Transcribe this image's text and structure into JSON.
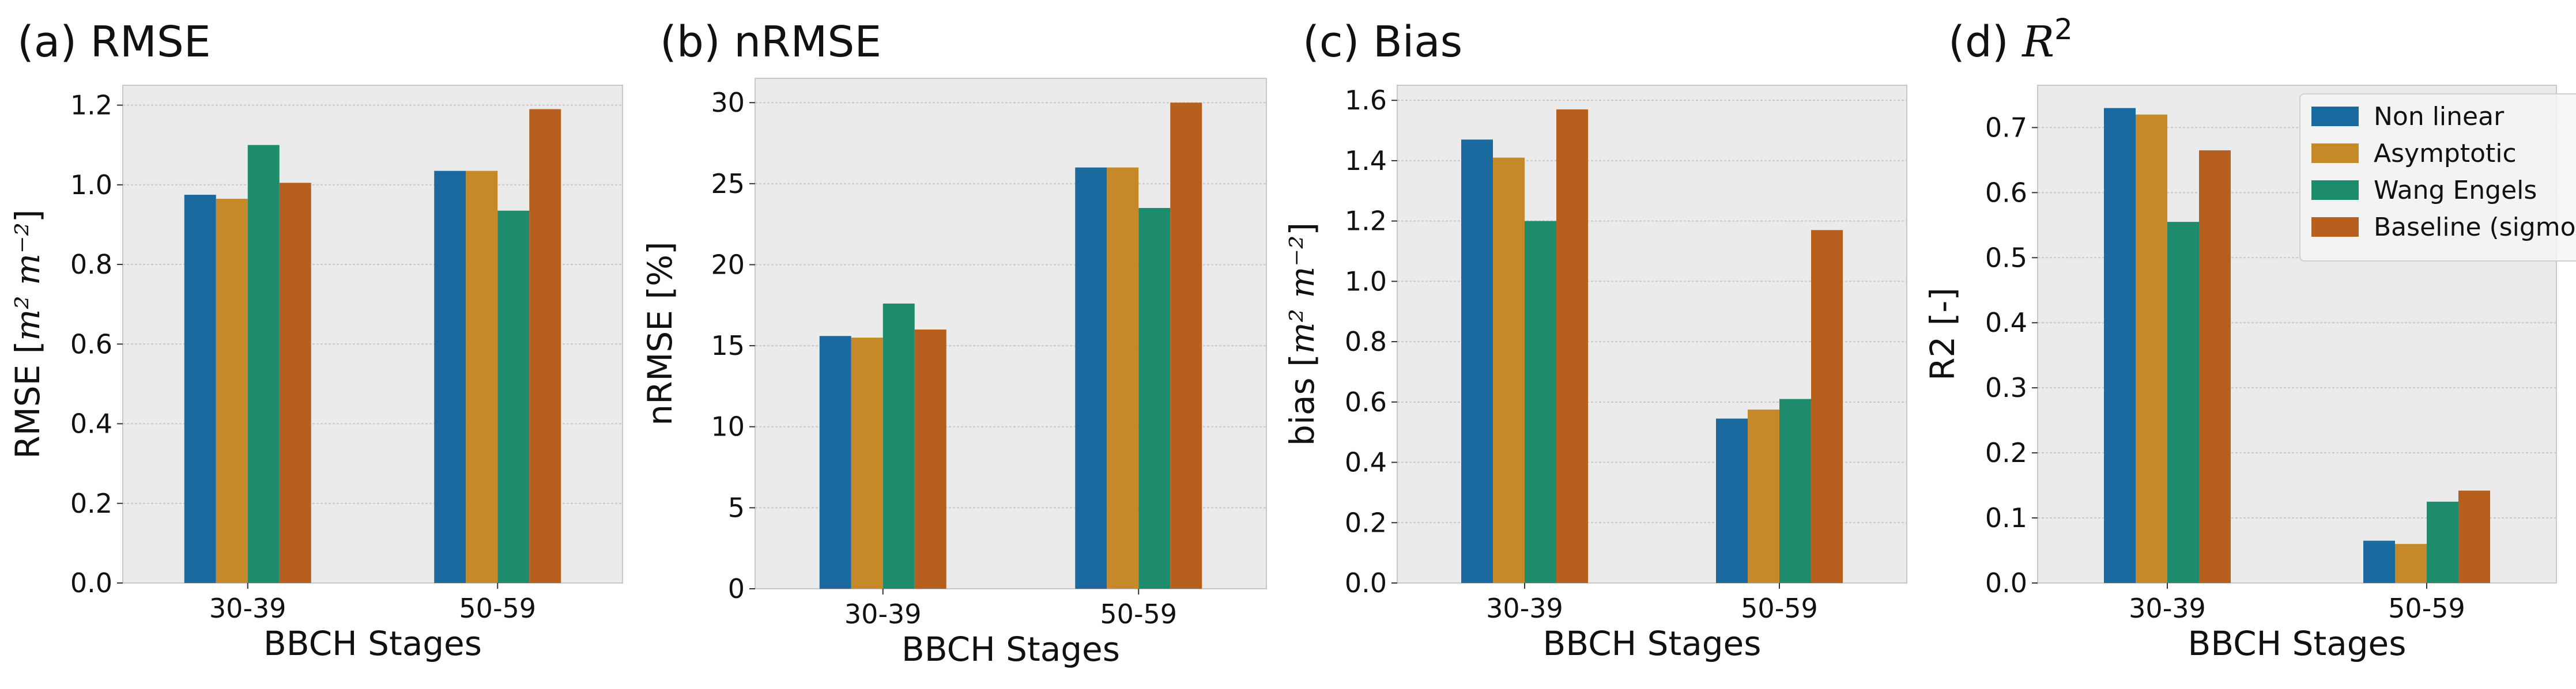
{
  "colors": {
    "Non linear": "#1a6aa0",
    "Asymptotic": "#c6892a",
    "Wang Engels": "#1e8c6c",
    "Baseline (sigmoid)": "#b75f1f",
    "plot_bg": "#ebebeb",
    "grid": "#c8c8c8"
  },
  "legend": {
    "entries": [
      "Non linear",
      "Asymptotic",
      "Wang Engels",
      "Baseline (sigmoid)"
    ],
    "placement": "upper-right (panel d)"
  },
  "chart_data": [
    {
      "type": "bar",
      "title": "(a) RMSE",
      "xlabel": "BBCH Stages",
      "ylabel": "RMSE [m² m⁻²]",
      "ylabel_text": "RMSE [",
      "ylabel_math": "m² m⁻²",
      "ylabel_close": "]",
      "categories": [
        "30-39",
        "50-59"
      ],
      "ylim": [
        0,
        1.25
      ],
      "yticks": [
        0.0,
        0.2,
        0.4,
        0.6,
        0.8,
        1.0,
        1.2
      ],
      "ytick_labels": [
        "0.0",
        "0.2",
        "0.4",
        "0.6",
        "0.8",
        "1.0",
        "1.2"
      ],
      "grid": true,
      "series": [
        {
          "name": "Non linear",
          "values": [
            0.975,
            1.035
          ]
        },
        {
          "name": "Asymptotic",
          "values": [
            0.965,
            1.035
          ]
        },
        {
          "name": "Wang Engels",
          "values": [
            1.1,
            0.935
          ]
        },
        {
          "name": "Baseline (sigmoid)",
          "values": [
            1.005,
            1.19
          ]
        }
      ]
    },
    {
      "type": "bar",
      "title": "(b) nRMSE",
      "xlabel": "BBCH Stages",
      "ylabel": "nRMSE [%]",
      "ylabel_text": "nRMSE [%]",
      "ylabel_math": "",
      "ylabel_close": "",
      "categories": [
        "30-39",
        "50-59"
      ],
      "ylim": [
        0,
        31.5
      ],
      "yticks": [
        0,
        5,
        10,
        15,
        20,
        25,
        30
      ],
      "ytick_labels": [
        "0",
        "5",
        "10",
        "15",
        "20",
        "25",
        "30"
      ],
      "grid": true,
      "series": [
        {
          "name": "Non linear",
          "values": [
            15.6,
            26.0
          ]
        },
        {
          "name": "Asymptotic",
          "values": [
            15.5,
            26.0
          ]
        },
        {
          "name": "Wang Engels",
          "values": [
            17.6,
            23.5
          ]
        },
        {
          "name": "Baseline (sigmoid)",
          "values": [
            16.0,
            30.0
          ]
        }
      ]
    },
    {
      "type": "bar",
      "title": "(c) Bias",
      "xlabel": "BBCH Stages",
      "ylabel": "bias [m² m⁻²]",
      "ylabel_text": "bias [",
      "ylabel_math": "m² m⁻²",
      "ylabel_close": "]",
      "categories": [
        "30-39",
        "50-59"
      ],
      "ylim": [
        0,
        1.65
      ],
      "yticks": [
        0.0,
        0.2,
        0.4,
        0.6,
        0.8,
        1.0,
        1.2,
        1.4,
        1.6
      ],
      "ytick_labels": [
        "0.0",
        "0.2",
        "0.4",
        "0.6",
        "0.8",
        "1.0",
        "1.2",
        "1.4",
        "1.6"
      ],
      "grid": true,
      "series": [
        {
          "name": "Non linear",
          "values": [
            1.47,
            0.545
          ]
        },
        {
          "name": "Asymptotic",
          "values": [
            1.41,
            0.575
          ]
        },
        {
          "name": "Wang Engels",
          "values": [
            1.2,
            0.61
          ]
        },
        {
          "name": "Baseline (sigmoid)",
          "values": [
            1.57,
            1.17
          ]
        }
      ]
    },
    {
      "type": "bar",
      "title": "(d) R²",
      "title_text": "(d) ",
      "title_math": "R",
      "title_sup": "2",
      "xlabel": "BBCH Stages",
      "ylabel": "R2 [-]",
      "ylabel_text": "R2 [-]",
      "ylabel_math": "",
      "ylabel_close": "",
      "categories": [
        "30-39",
        "50-59"
      ],
      "ylim": [
        0,
        0.765
      ],
      "yticks": [
        0.0,
        0.1,
        0.2,
        0.3,
        0.4,
        0.5,
        0.6,
        0.7
      ],
      "ytick_labels": [
        "0.0",
        "0.1",
        "0.2",
        "0.3",
        "0.4",
        "0.5",
        "0.6",
        "0.7"
      ],
      "grid": true,
      "series": [
        {
          "name": "Non linear",
          "values": [
            0.73,
            0.065
          ]
        },
        {
          "name": "Asymptotic",
          "values": [
            0.72,
            0.06
          ]
        },
        {
          "name": "Wang Engels",
          "values": [
            0.555,
            0.125
          ]
        },
        {
          "name": "Baseline (sigmoid)",
          "values": [
            0.665,
            0.142
          ]
        }
      ]
    }
  ]
}
